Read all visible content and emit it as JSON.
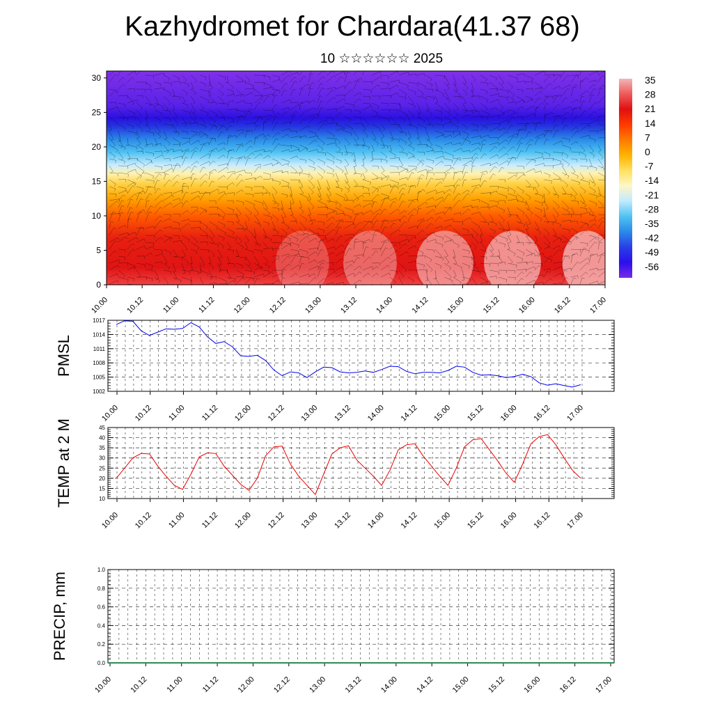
{
  "title": "Kazhydromet for Chardara(41.37 68)",
  "subtitle": "10 ☆☆☆☆☆☆ 2025",
  "colors": {
    "pmsl_line": "#0000ee",
    "temp_line": "#ee0000",
    "precip_line": "#2e8b57"
  },
  "chart_data": [
    {
      "type": "heatmap",
      "title": "",
      "xlabel": "",
      "ylabel": "",
      "x_ticks": [
        "10.00",
        "10.12",
        "11.00",
        "11.12",
        "12.00",
        "12.12",
        "13.00",
        "13.12",
        "14.00",
        "14.12",
        "15.00",
        "15.12",
        "16.00",
        "16.12",
        "17.00"
      ],
      "y_ticks": [
        0,
        5,
        10,
        15,
        20,
        25,
        30
      ],
      "ylim": [
        0,
        31
      ],
      "colorbar": {
        "labels": [
          "35",
          "28",
          "21",
          "14",
          "7",
          "0",
          "-7",
          "-14",
          "-21",
          "-28",
          "-35",
          "-42",
          "-49",
          "-56"
        ],
        "colors": [
          "#f3b6b6",
          "#ee5a5a",
          "#e01010",
          "#ff3a00",
          "#ff7a00",
          "#ffb300",
          "#ffe060",
          "#fff6c8",
          "#bfeaff",
          "#4fc2f2",
          "#2a8ae8",
          "#2a3ee8",
          "#2a10ea",
          "#7a2ae6"
        ]
      },
      "overlay": "wind barbs"
    },
    {
      "type": "line",
      "ylabel": "PMSL",
      "x_ticks": [
        "10.00",
        "10.12",
        "11.00",
        "11.12",
        "12.00",
        "12.12",
        "13.00",
        "13.12",
        "14.00",
        "14.12",
        "15.00",
        "15.12",
        "16.00",
        "16.12",
        "17.00"
      ],
      "y_ticks": [
        "1002",
        "1005",
        "1008",
        "1011",
        "1014",
        "1017"
      ],
      "ylim": [
        1002,
        1017
      ],
      "series": [
        {
          "values": [
            1016.1,
            1016.9,
            1016.8,
            1014.8,
            1013.8,
            1014.5,
            1015.2,
            1015.1,
            1015.3,
            1016.5,
            1015.6,
            1013.5,
            1012.1,
            1012.5,
            1011.4,
            1009.5,
            1009.4,
            1009.6,
            1008.5,
            1006.5,
            1005.3,
            1006.1,
            1005.9,
            1004.9,
            1006.1,
            1007.1,
            1007.0,
            1006.1,
            1005.9,
            1006.0,
            1006.3,
            1006.0,
            1006.6,
            1007.3,
            1007.2,
            1006.2,
            1005.7,
            1006.0,
            1006.0,
            1005.9,
            1006.4,
            1007.3,
            1007.1,
            1006.0,
            1005.4,
            1005.5,
            1005.3,
            1004.9,
            1005.1,
            1005.6,
            1005.1,
            1003.8,
            1003.3,
            1003.6,
            1003.2,
            1002.9,
            1003.4
          ]
        }
      ]
    },
    {
      "type": "line",
      "ylabel": "TEMP at 2 M",
      "x_ticks": [
        "10.00",
        "10.12",
        "11.00",
        "11.12",
        "12.00",
        "12.12",
        "13.00",
        "13.12",
        "14.00",
        "14.12",
        "15.00",
        "15.12",
        "16.00",
        "16.12",
        "17.00"
      ],
      "y_ticks": [
        "10",
        "15",
        "20",
        "25",
        "30",
        "35",
        "40",
        "45"
      ],
      "ylim": [
        10,
        45
      ],
      "series": [
        {
          "values": [
            20.0,
            25.0,
            30.0,
            32.2,
            32.0,
            26.0,
            21.0,
            16.5,
            14.5,
            22.0,
            30.5,
            32.5,
            32.2,
            26.0,
            21.5,
            17.0,
            14.0,
            20.0,
            31.0,
            35.5,
            35.8,
            27.0,
            21.0,
            16.5,
            12.0,
            22.0,
            32.0,
            35.0,
            36.0,
            29.0,
            25.0,
            21.0,
            16.5,
            24.0,
            34.0,
            36.5,
            37.0,
            31.0,
            26.0,
            21.0,
            16.5,
            25.0,
            35.5,
            39.0,
            39.5,
            34.0,
            28.5,
            22.5,
            18.0,
            27.0,
            37.0,
            40.5,
            41.5,
            36.5,
            30.0,
            24.0,
            20.0
          ]
        }
      ]
    },
    {
      "type": "line",
      "ylabel": "PRECIP, mm",
      "x_ticks": [
        "10.00",
        "10.12",
        "11.00",
        "11.12",
        "12.00",
        "12.12",
        "13.00",
        "13.12",
        "14.00",
        "14.12",
        "15.00",
        "15.12",
        "16.00",
        "16.12",
        "17.00"
      ],
      "y_ticks": [
        "0.0",
        "0.2",
        "0.4",
        "0.6",
        "0.8",
        "1.0"
      ],
      "ylim": [
        0,
        1
      ],
      "series": [
        {
          "values": [
            0,
            0,
            0,
            0,
            0,
            0,
            0,
            0,
            0,
            0,
            0,
            0,
            0,
            0,
            0,
            0,
            0,
            0,
            0,
            0,
            0,
            0,
            0,
            0,
            0,
            0,
            0,
            0,
            0,
            0,
            0,
            0,
            0,
            0,
            0,
            0,
            0,
            0,
            0,
            0,
            0,
            0,
            0,
            0,
            0,
            0,
            0,
            0,
            0,
            0,
            0,
            0,
            0,
            0,
            0,
            0,
            0
          ]
        }
      ]
    }
  ]
}
